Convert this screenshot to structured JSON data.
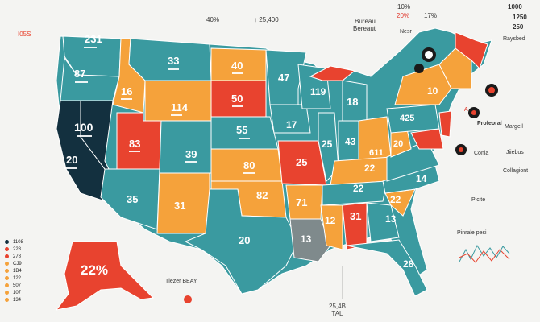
{
  "header": {
    "top_left": "I05S",
    "t40": "40%",
    "t25400": "↑ 25,400",
    "bureau1": "Bureau",
    "bureau2": "Bereaut",
    "t10": "10%",
    "t20": "20%",
    "t17": "17%",
    "t1000": "1000",
    "t1250": "1250",
    "t250": "250"
  },
  "states": {
    "wa": {
      "value": "231"
    },
    "or": {
      "value": "87"
    },
    "ca": {
      "value": "100"
    },
    "ca2": {
      "value": "20"
    },
    "id": {
      "value": "16"
    },
    "nv": {
      "value": "83"
    },
    "mt": {
      "value": "33"
    },
    "wy": {
      "value": "114"
    },
    "ut": {
      "value": "83"
    },
    "az": {
      "value": "35"
    },
    "co": {
      "value": "39"
    },
    "nm": {
      "value": "31"
    },
    "nd": {
      "value": "40"
    },
    "sd": {
      "value": "50"
    },
    "ne": {
      "value": "55"
    },
    "ks": {
      "value": "80"
    },
    "ok": {
      "value": "82"
    },
    "tx": {
      "value": "20"
    },
    "mn": {
      "value": "47"
    },
    "ia": {
      "value": "17"
    },
    "mo": {
      "value": "25"
    },
    "ar": {
      "value": "71"
    },
    "la": {
      "value": "13"
    },
    "wi": {
      "value": "119"
    },
    "il": {
      "value": "25"
    },
    "ms": {
      "value": "12"
    },
    "al": {
      "value": "31"
    },
    "mi": {
      "value": "18"
    },
    "in": {
      "value": "43"
    },
    "tn": {
      "value": "22"
    },
    "ky": {
      "value": "22"
    },
    "ga": {
      "value": "13"
    },
    "fl": {
      "value": "28"
    },
    "oh": {
      "value": "611"
    },
    "wv": {
      "value": "20"
    },
    "sc": {
      "value": "22"
    },
    "nc": {
      "value": "14"
    },
    "pa": {
      "value": "425"
    },
    "ny": {
      "value": "10"
    },
    "ak": {
      "value": "22%"
    }
  },
  "side_labels": {
    "nesr": "Nesr",
    "a": "A",
    "proforal": "Profeoral",
    "margell": "Margell",
    "conia": "Conia",
    "jiiebus": "Jiiebus",
    "collagiont": "Collagiont",
    "picite": "Picite",
    "rays": "Raysbed",
    "pinrale": "Pinrale pesi"
  },
  "legend": {
    "items": [
      {
        "label": "1108",
        "color": "#13303f"
      },
      {
        "label": "228",
        "color": "#e8432f"
      },
      {
        "label": "278",
        "color": "#e8432f"
      },
      {
        "label": "CJ9",
        "color": "#f5a23b"
      },
      {
        "label": "1B4",
        "color": "#f5a23b"
      },
      {
        "label": "122",
        "color": "#f5a23b"
      },
      {
        "label": "507",
        "color": "#f5a23b"
      },
      {
        "label": "107",
        "color": "#f5a23b"
      },
      {
        "label": "134",
        "color": "#f5a23b"
      }
    ]
  },
  "bottom": {
    "line1": "25,4B",
    "line2": "TAL"
  },
  "hawaii_label": "Tlezer BEAY",
  "colors": {
    "teal": "#3a9aa0",
    "dark": "#13303f",
    "orange": "#f5a23b",
    "red": "#e8432f",
    "gray": "#7f8a8c"
  }
}
